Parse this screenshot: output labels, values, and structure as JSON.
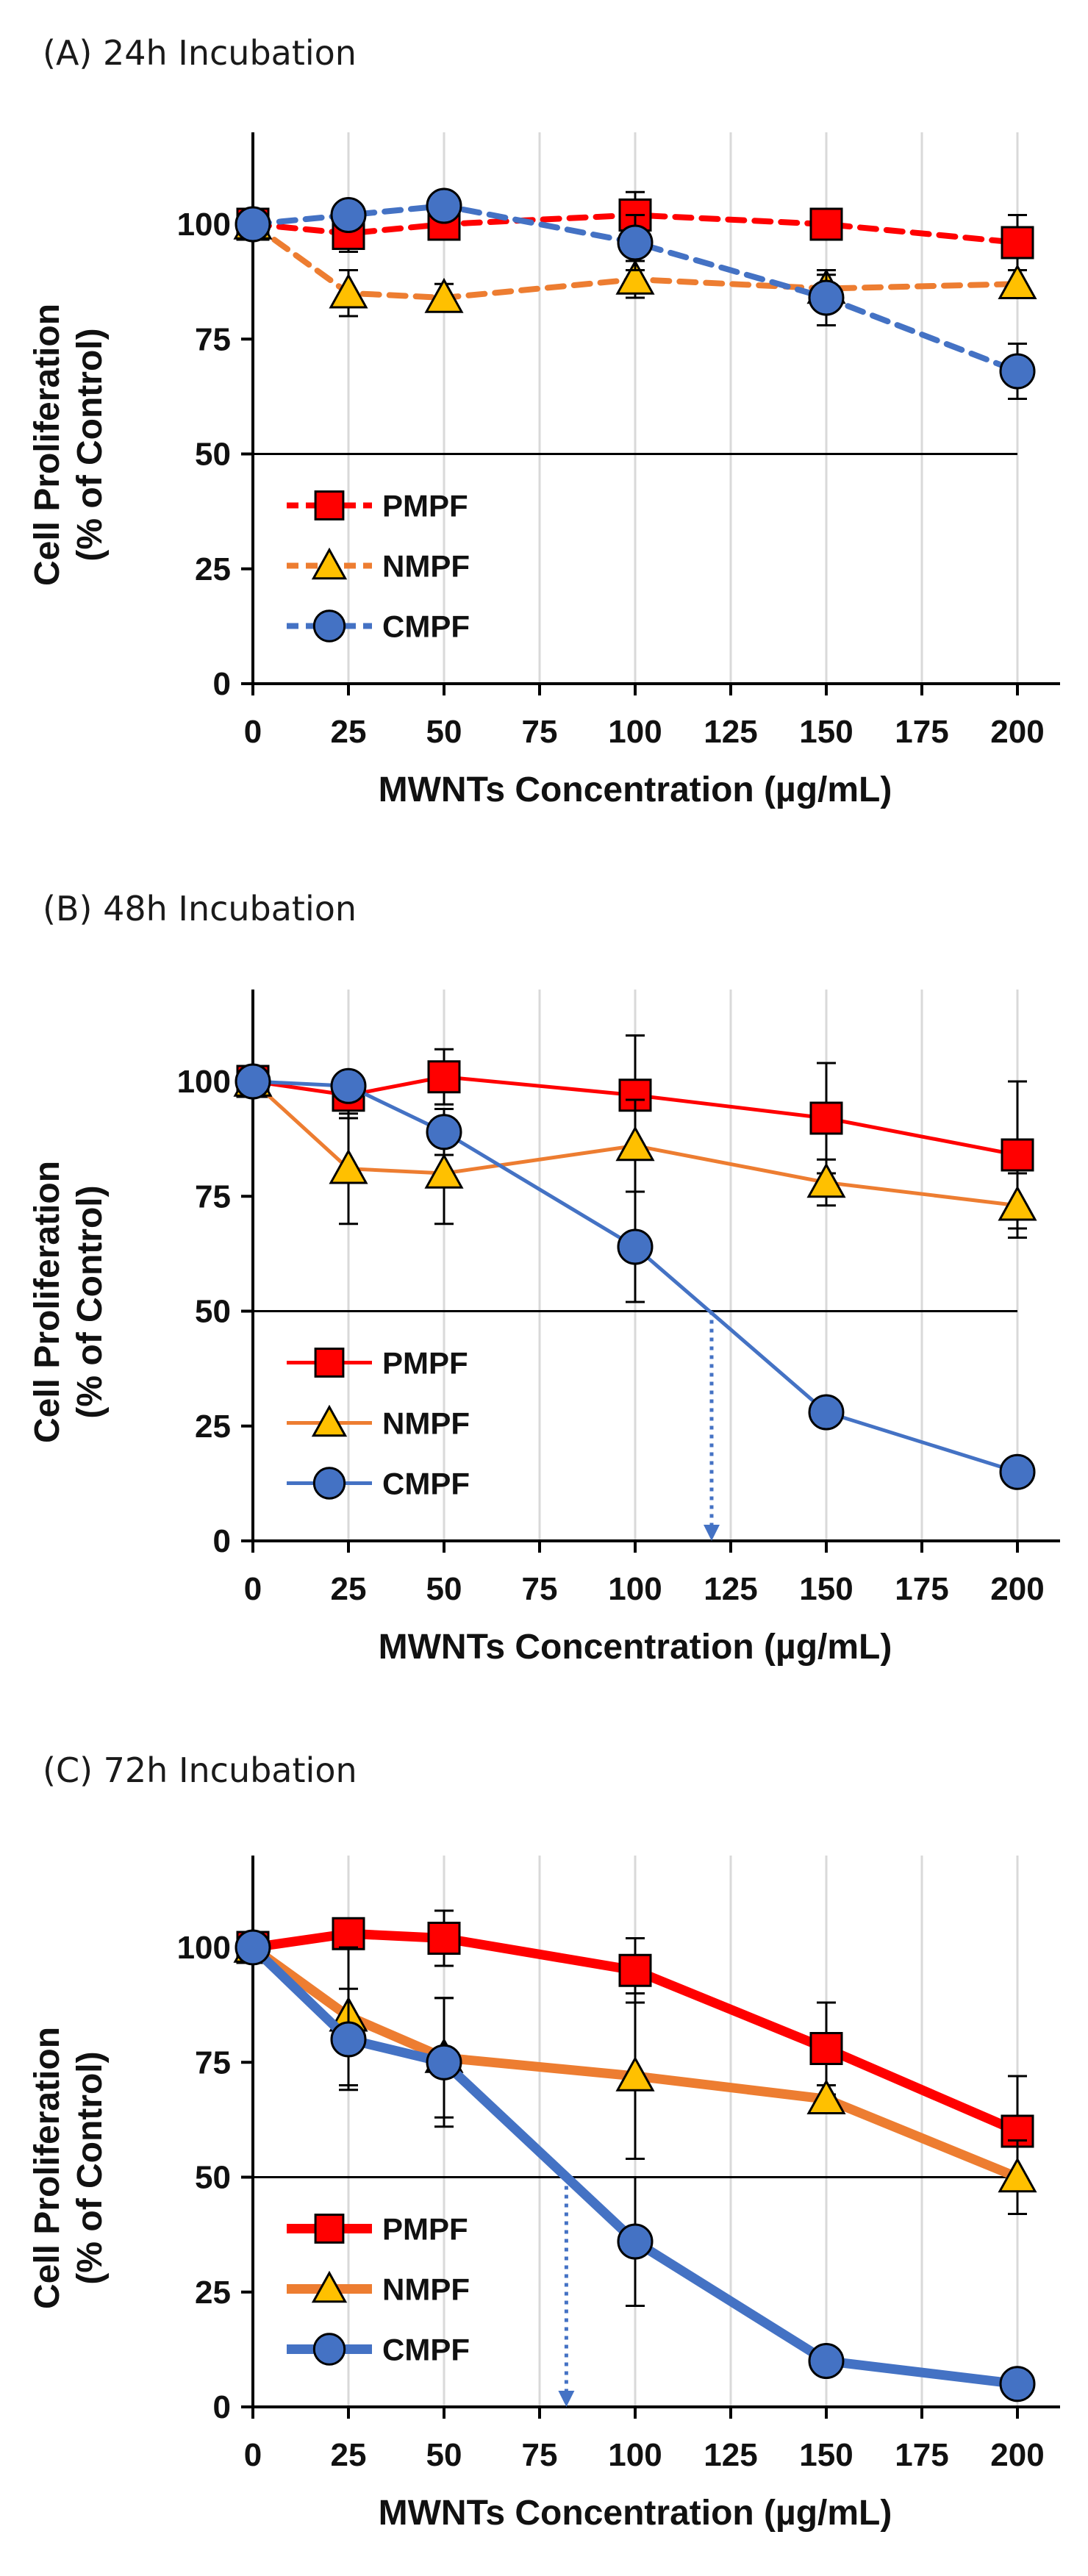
{
  "chart_data": [
    {
      "type": "line",
      "title": "(A) 24h Incubation",
      "xlabel": "MWNTs Concentration (µg/mL)",
      "ylabel_lines": [
        "Cell Proliferation",
        "(% of Control)"
      ],
      "xlim": [
        0,
        200
      ],
      "ylim": [
        0,
        120
      ],
      "xticks": [
        0,
        25,
        50,
        75,
        100,
        125,
        150,
        175,
        200
      ],
      "yticks": [
        0,
        25,
        50,
        75,
        100
      ],
      "reference_line": 50,
      "grid": "vertical",
      "line_style": "dashed",
      "legend_position": "lower-left",
      "arrow": null,
      "series": [
        {
          "name": "PMPF",
          "marker": "square",
          "color": "#ff0000",
          "x": [
            0,
            25,
            50,
            100,
            150,
            200
          ],
          "y": [
            100,
            98,
            100,
            102,
            100,
            96
          ],
          "err": [
            0,
            4,
            3,
            5,
            3,
            6
          ]
        },
        {
          "name": "NMPF",
          "marker": "triangle",
          "color": "#ed7d31",
          "x": [
            0,
            25,
            50,
            100,
            150,
            200
          ],
          "y": [
            100,
            85,
            84,
            88,
            86,
            87
          ],
          "err": [
            0,
            5,
            3,
            4,
            3,
            3
          ]
        },
        {
          "name": "CMPF",
          "marker": "circle",
          "color": "#4472c4",
          "x": [
            0,
            25,
            50,
            100,
            150,
            200
          ],
          "y": [
            100,
            102,
            104,
            96,
            84,
            68
          ],
          "err": [
            0,
            3,
            3,
            6,
            6,
            6
          ]
        }
      ]
    },
    {
      "type": "line",
      "title": "(B) 48h Incubation",
      "xlabel": "MWNTs Concentration (µg/mL)",
      "ylabel_lines": [
        "Cell Proliferation",
        "(% of Control)"
      ],
      "xlim": [
        0,
        200
      ],
      "ylim": [
        0,
        120
      ],
      "xticks": [
        0,
        25,
        50,
        75,
        100,
        125,
        150,
        175,
        200
      ],
      "yticks": [
        0,
        25,
        50,
        75,
        100
      ],
      "reference_line": 50,
      "grid": "vertical",
      "line_style": "solid",
      "legend_position": "lower-left",
      "arrow": {
        "x": 120,
        "from_y": 50,
        "to_y": 0
      },
      "series": [
        {
          "name": "PMPF",
          "marker": "square",
          "color": "#ff0000",
          "x": [
            0,
            25,
            50,
            100,
            150,
            200
          ],
          "y": [
            100,
            97,
            101,
            97,
            92,
            84
          ],
          "err": [
            0,
            5,
            6,
            13,
            12,
            16
          ]
        },
        {
          "name": "NMPF",
          "marker": "triangle",
          "color": "#ed7d31",
          "x": [
            0,
            25,
            50,
            100,
            150,
            200
          ],
          "y": [
            100,
            81,
            80,
            86,
            78,
            73
          ],
          "err": [
            0,
            12,
            11,
            10,
            5,
            7
          ]
        },
        {
          "name": "CMPF",
          "marker": "circle",
          "color": "#4472c4",
          "x": [
            0,
            25,
            50,
            100,
            150,
            200
          ],
          "y": [
            100,
            99,
            89,
            64,
            28,
            15
          ],
          "err": [
            0,
            3,
            5,
            12,
            2,
            2
          ]
        }
      ]
    },
    {
      "type": "line",
      "title": "(C) 72h Incubation",
      "xlabel": "MWNTs Concentration (µg/mL)",
      "ylabel_lines": [
        "Cell Proliferation",
        "(% of Control)"
      ],
      "xlim": [
        0,
        200
      ],
      "ylim": [
        0,
        120
      ],
      "xticks": [
        0,
        25,
        50,
        75,
        100,
        125,
        150,
        175,
        200
      ],
      "yticks": [
        0,
        25,
        50,
        75,
        100
      ],
      "reference_line": 50,
      "grid": "vertical",
      "line_style": "solid-thick",
      "legend_position": "lower-left",
      "arrow": {
        "x": 82,
        "from_y": 50,
        "to_y": 0
      },
      "series": [
        {
          "name": "PMPF",
          "marker": "square",
          "color": "#ff0000",
          "x": [
            0,
            25,
            50,
            100,
            150,
            200
          ],
          "y": [
            100,
            103,
            102,
            95,
            78,
            60
          ],
          "err": [
            0,
            3,
            6,
            7,
            10,
            12
          ]
        },
        {
          "name": "NMPF",
          "marker": "triangle",
          "color": "#ed7d31",
          "x": [
            0,
            25,
            50,
            100,
            150,
            200
          ],
          "y": [
            100,
            85,
            76,
            72,
            67,
            50
          ],
          "err": [
            0,
            15,
            13,
            18,
            3,
            8
          ]
        },
        {
          "name": "CMPF",
          "marker": "circle",
          "color": "#4472c4",
          "x": [
            0,
            25,
            50,
            100,
            150,
            200
          ],
          "y": [
            100,
            80,
            75,
            36,
            10,
            5
          ],
          "err": [
            0,
            11,
            14,
            14,
            2,
            2
          ]
        }
      ]
    }
  ]
}
